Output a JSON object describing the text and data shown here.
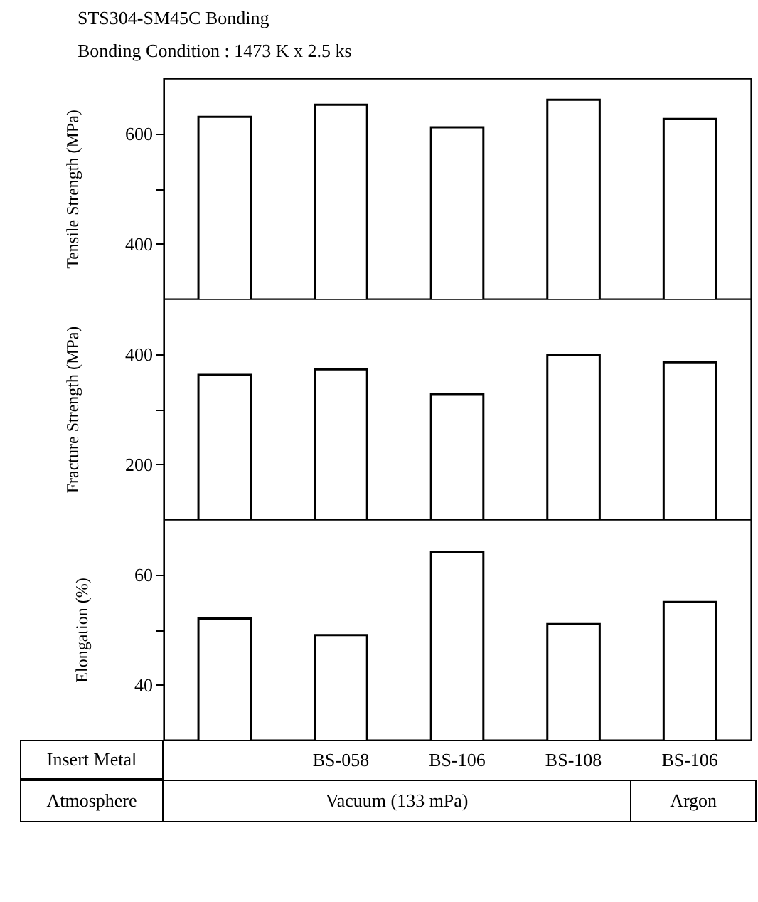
{
  "chart_data": [
    {
      "type": "bar",
      "title": "STS304-SM45C Bonding",
      "subtitle": "Bonding Condition : 1473 K x 2.5 ks",
      "ylabel": "Tensile Strength (MPa)",
      "values": [
        630,
        652,
        611,
        661,
        626
      ],
      "color": "#ffffff",
      "ylim": [
        300,
        700
      ],
      "yticks": [
        400,
        {
          "value": 500,
          "label": null
        },
        600
      ],
      "tick_labels": "y"
    },
    {
      "type": "bar",
      "ylabel": "Fracture Strength (MPa)",
      "values": [
        362,
        372,
        327,
        398,
        385
      ],
      "color": "#ffffff",
      "ylim": [
        100,
        500
      ],
      "yticks": [
        200,
        {
          "value": 300,
          "label": null
        },
        400
      ],
      "tick_labels": "y"
    },
    {
      "type": "bar",
      "ylabel": "Elongation (%)",
      "categories": [
        null,
        "BS-058",
        "BS-106",
        "BS-108",
        "BS-106"
      ],
      "values": [
        52,
        49,
        64,
        51,
        55
      ],
      "color": "#ffffff",
      "ylim": [
        30,
        70
      ],
      "yticks": [
        40,
        {
          "value": 50,
          "label": null
        },
        60
      ],
      "annotations": [
        "Insert Metal",
        "Atmosphere",
        "Vacuum (133 mPa)",
        "Argon"
      ]
    }
  ]
}
